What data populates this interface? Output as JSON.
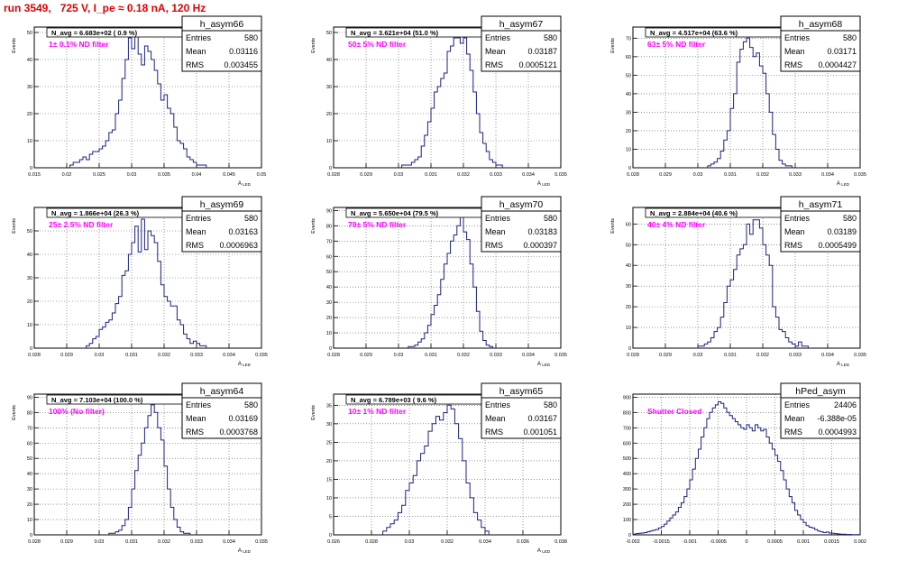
{
  "page": {
    "title": "run 3549,   725 V, I_pe ≈ 0.18 nA, 120 Hz"
  },
  "chart_data": [
    {
      "type": "bar",
      "name": "h_asym66",
      "stats": {
        "entries": "580",
        "mean": "0.03116",
        "rms": "0.003455"
      },
      "navg": "N_avg = 6.683e+02 ( 0.9 %)",
      "filter": "1± 0.1% ND filter",
      "ylabel": "Events",
      "xlabel": "A_{LED}",
      "xlim": [
        0.015,
        0.05
      ],
      "ylim": [
        0,
        52
      ],
      "xticks": [
        0.015,
        0.02,
        0.025,
        0.03,
        0.035,
        0.04,
        0.045,
        0.05
      ],
      "xtick_labels": [
        "0.015",
        "0.02",
        "0.025",
        "0.03",
        "0.035",
        "0.04",
        "0.045",
        "0.05"
      ],
      "yticks": [
        0,
        10,
        20,
        30,
        40,
        50
      ],
      "bin_width": 0.0005,
      "bins_x0": [
        0.0205,
        0.021,
        0.0215,
        0.022,
        0.0225,
        0.023,
        0.0235,
        0.024,
        0.0245,
        0.025,
        0.0255,
        0.026,
        0.0265,
        0.027,
        0.0275,
        0.028,
        0.0285,
        0.029,
        0.0295,
        0.03,
        0.0305,
        0.031,
        0.0315,
        0.032,
        0.0325,
        0.033,
        0.0335,
        0.034,
        0.0345,
        0.035,
        0.0355,
        0.036,
        0.0365,
        0.037,
        0.0375,
        0.038,
        0.0385,
        0.039,
        0.0395,
        0.04,
        0.0405,
        0.041
      ],
      "values": [
        1,
        2,
        2,
        3,
        4,
        3,
        5,
        6,
        6,
        7,
        8,
        10,
        13,
        14,
        20,
        25,
        33,
        40,
        48,
        44,
        50,
        42,
        38,
        45,
        43,
        40,
        36,
        31,
        25,
        27,
        22,
        20,
        15,
        10,
        9,
        7,
        4,
        3,
        2,
        1,
        1,
        1
      ]
    },
    {
      "type": "bar",
      "name": "h_asym67",
      "stats": {
        "entries": "580",
        "mean": "0.03187",
        "rms": "0.0005121"
      },
      "navg": "N_avg = 3.621e+04 (51.0 %)",
      "filter": "50± 5% ND filter",
      "ylabel": "Events",
      "xlabel": "A_{LED}",
      "xlim": [
        0.028,
        0.035
      ],
      "ylim": [
        0,
        52
      ],
      "xticks": [
        0.028,
        0.029,
        0.03,
        0.031,
        0.032,
        0.033,
        0.034,
        0.035
      ],
      "xtick_labels": [
        "0.028",
        "0.029",
        "0.03",
        "0.031",
        "0.032",
        "0.033",
        "0.034",
        "0.035"
      ],
      "yticks": [
        0,
        10,
        20,
        30,
        40,
        50
      ],
      "bin_width": 0.0001,
      "bins_x0": [
        0.0301,
        0.0302,
        0.0303,
        0.0304,
        0.0305,
        0.0306,
        0.0307,
        0.0308,
        0.0309,
        0.031,
        0.0311,
        0.0312,
        0.0313,
        0.0314,
        0.0315,
        0.0316,
        0.0317,
        0.0318,
        0.0319,
        0.032,
        0.0321,
        0.0322,
        0.0323,
        0.0324,
        0.0325,
        0.0326,
        0.0327,
        0.0328,
        0.0329,
        0.033,
        0.0331
      ],
      "values": [
        1,
        1,
        1,
        2,
        3,
        4,
        8,
        12,
        17,
        22,
        28,
        30,
        33,
        35,
        43,
        45,
        48,
        48,
        46,
        48,
        42,
        36,
        28,
        20,
        13,
        9,
        6,
        3,
        2,
        1,
        1
      ]
    },
    {
      "type": "bar",
      "name": "h_asym68",
      "stats": {
        "entries": "580",
        "mean": "0.03171",
        "rms": "0.0004427"
      },
      "navg": "N_avg = 4.517e+04 (63.6 %)",
      "filter": "63± 5% ND filter",
      "ylabel": "Events",
      "xlabel": "A_{LED}",
      "xlim": [
        0.028,
        0.035
      ],
      "ylim": [
        0,
        76
      ],
      "xticks": [
        0.028,
        0.029,
        0.03,
        0.031,
        0.032,
        0.033,
        0.034,
        0.035
      ],
      "xtick_labels": [
        "0.028",
        "0.029",
        "0.03",
        "0.031",
        "0.032",
        "0.033",
        "0.034",
        "0.035"
      ],
      "yticks": [
        0,
        10,
        20,
        30,
        40,
        50,
        60,
        70
      ],
      "bin_width": 0.0001,
      "bins_x0": [
        0.0303,
        0.0304,
        0.0305,
        0.0306,
        0.0307,
        0.0308,
        0.0309,
        0.031,
        0.0311,
        0.0312,
        0.0313,
        0.0314,
        0.0315,
        0.0316,
        0.0317,
        0.0318,
        0.0319,
        0.032,
        0.0321,
        0.0322,
        0.0323,
        0.0324,
        0.0325,
        0.0326,
        0.0327,
        0.0328
      ],
      "values": [
        1,
        2,
        3,
        5,
        9,
        15,
        20,
        32,
        40,
        57,
        64,
        68,
        70,
        65,
        60,
        62,
        55,
        51,
        40,
        30,
        18,
        10,
        4,
        2,
        1,
        1
      ]
    },
    {
      "type": "bar",
      "name": "h_asym69",
      "stats": {
        "entries": "580",
        "mean": "0.03163",
        "rms": "0.0006963"
      },
      "navg": "N_avg = 1.866e+04 (26.3 %)",
      "filter": "25± 2.5% ND filter",
      "ylabel": "Events",
      "xlabel": "A_{LED}",
      "xlim": [
        0.028,
        0.035
      ],
      "ylim": [
        0,
        60
      ],
      "xticks": [
        0.028,
        0.029,
        0.03,
        0.031,
        0.032,
        0.033,
        0.034,
        0.035
      ],
      "xtick_labels": [
        "0.028",
        "0.029",
        "0.03",
        "0.031",
        "0.032",
        "0.033",
        "0.034",
        "0.035"
      ],
      "yticks": [
        0,
        10,
        20,
        30,
        40,
        50
      ],
      "bin_width": 0.0001,
      "bins_x0": [
        0.0296,
        0.0297,
        0.0298,
        0.0299,
        0.03,
        0.0301,
        0.0302,
        0.0303,
        0.0304,
        0.0305,
        0.0306,
        0.0307,
        0.0308,
        0.0309,
        0.031,
        0.0311,
        0.0312,
        0.0313,
        0.0314,
        0.0315,
        0.0316,
        0.0317,
        0.0318,
        0.0319,
        0.032,
        0.0321,
        0.0322,
        0.0323,
        0.0324,
        0.0325,
        0.0326,
        0.0327,
        0.0328,
        0.0329,
        0.033,
        0.0331,
        0.0332
      ],
      "values": [
        1,
        2,
        4,
        5,
        8,
        9,
        11,
        12,
        15,
        19,
        22,
        31,
        33,
        40,
        45,
        52,
        41,
        55,
        42,
        50,
        48,
        45,
        37,
        27,
        22,
        20,
        18,
        18,
        12,
        10,
        6,
        4,
        2,
        3,
        2,
        1,
        1
      ]
    },
    {
      "type": "bar",
      "name": "h_asym70",
      "stats": {
        "entries": "580",
        "mean": "0.03183",
        "rms": "0.000397"
      },
      "navg": "N_avg = 5.650e+04 (79.5 %)",
      "filter": "79± 5% ND filter",
      "ylabel": "Events",
      "xlabel": "A_{LED}",
      "xlim": [
        0.028,
        0.035
      ],
      "ylim": [
        0,
        92
      ],
      "xticks": [
        0.028,
        0.029,
        0.03,
        0.031,
        0.032,
        0.033,
        0.034,
        0.035
      ],
      "xtick_labels": [
        "0.028",
        "0.029",
        "0.03",
        "0.031",
        "0.032",
        "0.033",
        "0.034",
        "0.035"
      ],
      "yticks": [
        0,
        10,
        20,
        30,
        40,
        50,
        60,
        70,
        80,
        90
      ],
      "bin_width": 0.0001,
      "bins_x0": [
        0.0303,
        0.0304,
        0.0305,
        0.0306,
        0.0307,
        0.0308,
        0.0309,
        0.031,
        0.0311,
        0.0312,
        0.0313,
        0.0314,
        0.0315,
        0.0316,
        0.0317,
        0.0318,
        0.0319,
        0.032,
        0.0321,
        0.0322,
        0.0323,
        0.0324,
        0.0325,
        0.0326,
        0.0327,
        0.0328
      ],
      "values": [
        1,
        1,
        2,
        4,
        6,
        10,
        15,
        22,
        28,
        35,
        45,
        55,
        62,
        70,
        74,
        80,
        86,
        76,
        71,
        55,
        40,
        24,
        11,
        5,
        2,
        1
      ]
    },
    {
      "type": "bar",
      "name": "h_asym71",
      "stats": {
        "entries": "580",
        "mean": "0.03189",
        "rms": "0.0005499"
      },
      "navg": "N_avg = 2.884e+04 (40.6 %)",
      "filter": "40± 4% ND filter",
      "ylabel": "Events",
      "xlabel": "A_{LED}",
      "xlim": [
        0.028,
        0.035
      ],
      "ylim": [
        0,
        68
      ],
      "xticks": [
        0.028,
        0.029,
        0.03,
        0.031,
        0.032,
        0.033,
        0.034,
        0.035
      ],
      "xtick_labels": [
        "0.028",
        "0.029",
        "0.03",
        "0.031",
        "0.032",
        "0.033",
        "0.034",
        "0.035"
      ],
      "yticks": [
        0,
        10,
        20,
        30,
        40,
        50,
        60
      ],
      "bin_width": 0.0001,
      "bins_x0": [
        0.03,
        0.0301,
        0.0302,
        0.0303,
        0.0304,
        0.0305,
        0.0306,
        0.0307,
        0.0308,
        0.0309,
        0.031,
        0.0311,
        0.0312,
        0.0313,
        0.0314,
        0.0315,
        0.0316,
        0.0317,
        0.0318,
        0.0319,
        0.032,
        0.0321,
        0.0322,
        0.0323,
        0.0324,
        0.0325,
        0.0326,
        0.0327,
        0.0328,
        0.0329,
        0.033,
        0.0331,
        0.0332,
        0.0333
      ],
      "values": [
        1,
        1,
        2,
        3,
        5,
        8,
        10,
        15,
        22,
        30,
        33,
        38,
        45,
        48,
        50,
        60,
        55,
        62,
        62,
        58,
        50,
        45,
        40,
        20,
        15,
        9,
        8,
        5,
        3,
        2,
        1,
        3,
        1,
        1
      ]
    },
    {
      "type": "bar",
      "name": "h_asym64",
      "stats": {
        "entries": "580",
        "mean": "0.03169",
        "rms": "0.0003768"
      },
      "navg": "N_avg = 7.103e+04 (100.0 %)",
      "filter": "100% (No filter)",
      "ylabel": "Events",
      "xlabel": "A_{LED}",
      "xlim": [
        0.028,
        0.035
      ],
      "ylim": [
        0,
        92
      ],
      "xticks": [
        0.028,
        0.029,
        0.03,
        0.031,
        0.032,
        0.033,
        0.034,
        0.035
      ],
      "xtick_labels": [
        "0.028",
        "0.029",
        "0.03",
        "0.031",
        "0.032",
        "0.033",
        "0.034",
        "0.035"
      ],
      "yticks": [
        0,
        10,
        20,
        30,
        40,
        50,
        60,
        70,
        80,
        90
      ],
      "bin_width": 0.0001,
      "bins_x0": [
        0.0303,
        0.0304,
        0.0305,
        0.0306,
        0.0307,
        0.0308,
        0.0309,
        0.031,
        0.0311,
        0.0312,
        0.0313,
        0.0314,
        0.0315,
        0.0316,
        0.0317,
        0.0318,
        0.0319,
        0.032,
        0.0321,
        0.0322,
        0.0323,
        0.0324,
        0.0325,
        0.0326,
        0.0327
      ],
      "values": [
        1,
        1,
        2,
        3,
        6,
        10,
        18,
        30,
        42,
        52,
        60,
        70,
        78,
        85,
        80,
        70,
        62,
        45,
        30,
        18,
        10,
        5,
        2,
        1,
        1
      ]
    },
    {
      "type": "bar",
      "name": "h_asym65",
      "stats": {
        "entries": "580",
        "mean": "0.03167",
        "rms": "0.001051"
      },
      "navg": "N_avg = 6.789e+03 ( 9.6 %)",
      "filter": "10± 1% ND filter",
      "ylabel": "Events",
      "xlabel": "A_{LED}",
      "xlim": [
        0.026,
        0.038
      ],
      "ylim": [
        0,
        38
      ],
      "xticks": [
        0.026,
        0.028,
        0.03,
        0.032,
        0.034,
        0.036,
        0.038
      ],
      "xtick_labels": [
        "0.026",
        "0.028",
        "0.03",
        "0.032",
        "0.034",
        "0.036",
        "0.038"
      ],
      "yticks": [
        0,
        5,
        10,
        15,
        20,
        25,
        30,
        35
      ],
      "bin_width": 0.0002,
      "bins_x0": [
        0.0286,
        0.0288,
        0.029,
        0.0292,
        0.0294,
        0.0296,
        0.0298,
        0.03,
        0.0302,
        0.0304,
        0.0306,
        0.0308,
        0.031,
        0.0312,
        0.0314,
        0.0316,
        0.0318,
        0.032,
        0.0322,
        0.0324,
        0.0326,
        0.0328,
        0.033,
        0.0332,
        0.0334,
        0.0336,
        0.0338,
        0.034
      ],
      "values": [
        1,
        2,
        3,
        4,
        6,
        8,
        12,
        14,
        16,
        20,
        22,
        24,
        28,
        30,
        32,
        31,
        33,
        35,
        34,
        30,
        26,
        20,
        14,
        10,
        6,
        4,
        2,
        1
      ]
    },
    {
      "type": "bar",
      "name": "hPed_asym",
      "stats": {
        "entries": "24406",
        "mean": "-6.388e-05",
        "rms": "0.0004993"
      },
      "navg": "",
      "filter": "Shutter Closed",
      "ylabel": "",
      "xlabel": "",
      "xlim": [
        -0.002,
        0.002
      ],
      "ylim": [
        0,
        920
      ],
      "xticks": [
        -0.002,
        -0.0015,
        -0.001,
        -0.0005,
        0,
        0.0005,
        0.001,
        0.0015,
        0.002
      ],
      "xtick_labels": [
        "-0.002",
        "-0.0015",
        "-0.001",
        "-0.0005",
        "0",
        "0.0005",
        "0.001",
        "0.0015",
        "0.002"
      ],
      "yticks": [
        0,
        100,
        200,
        300,
        400,
        500,
        600,
        700,
        800,
        900
      ],
      "bin_width": 5e-05,
      "bins_x0": [
        -0.002,
        -0.00195,
        -0.0019,
        -0.00185,
        -0.0018,
        -0.00175,
        -0.0017,
        -0.00165,
        -0.0016,
        -0.00155,
        -0.0015,
        -0.00145,
        -0.0014,
        -0.00135,
        -0.0013,
        -0.00125,
        -0.0012,
        -0.00115,
        -0.0011,
        -0.00105,
        -0.001,
        -0.00095,
        -0.0009,
        -0.00085,
        -0.0008,
        -0.00075,
        -0.0007,
        -0.00065,
        -0.0006,
        -0.00055,
        -0.0005,
        -0.00045,
        -0.0004,
        -0.00035,
        -0.0003,
        -0.00025,
        -0.0002,
        -0.00015,
        -0.0001,
        -5e-05,
        0,
        5e-05,
        0.0001,
        0.00015,
        0.0002,
        0.00025,
        0.0003,
        0.00035,
        0.0004,
        0.00045,
        0.0005,
        0.00055,
        0.0006,
        0.00065,
        0.0007,
        0.00075,
        0.0008,
        0.00085,
        0.0009,
        0.00095,
        0.001,
        0.00105,
        0.0011,
        0.00115,
        0.0012,
        0.00125,
        0.0013,
        0.00135,
        0.0014,
        0.00145,
        0.0015,
        0.00155,
        0.0016,
        0.00165,
        0.0017,
        0.00175,
        0.0018,
        0.00185,
        0.0019,
        0.00195
      ],
      "values": [
        5,
        8,
        10,
        12,
        15,
        20,
        25,
        30,
        35,
        45,
        55,
        70,
        90,
        110,
        130,
        150,
        180,
        210,
        250,
        300,
        360,
        430,
        500,
        560,
        640,
        700,
        760,
        800,
        830,
        850,
        870,
        860,
        830,
        800,
        780,
        760,
        740,
        720,
        700,
        690,
        720,
        700,
        680,
        720,
        700,
        680,
        690,
        640,
        600,
        560,
        520,
        480,
        420,
        360,
        300,
        250,
        210,
        160,
        130,
        100,
        80,
        60,
        50,
        45,
        35,
        25,
        20,
        15,
        18,
        12,
        10,
        8,
        6,
        5,
        4,
        3,
        3,
        2,
        2,
        1
      ]
    }
  ],
  "labels": {
    "entries": "Entries",
    "mean": "Mean",
    "rms": "RMS"
  },
  "colors": {
    "hist": "#1a237e",
    "title": "#e00000",
    "filter": "#ff00ff",
    "grid": "#555555"
  }
}
